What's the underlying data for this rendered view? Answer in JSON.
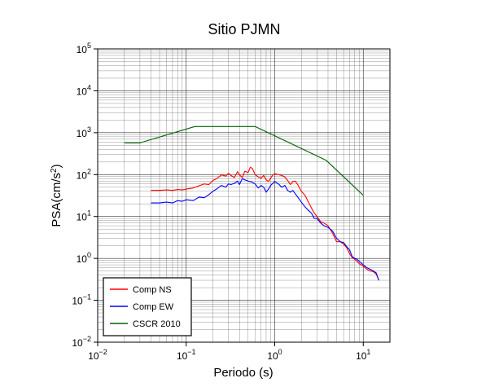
{
  "chart_data": {
    "type": "line",
    "title": "Sitio PJMN",
    "xlabel": "Periodo (s)",
    "ylabel_main": "PSA(cm/s",
    "ylabel_sup": "2",
    "ylabel_end": ")",
    "xscale": "log",
    "yscale": "log",
    "xlim": [
      0.01,
      20
    ],
    "ylim": [
      0.01,
      100000
    ],
    "grid": true,
    "legend_position": "bottom-left",
    "x_ticks": [
      {
        "base": "10",
        "exp": "−2",
        "value": 0.01
      },
      {
        "base": "10",
        "exp": "−1",
        "value": 0.1
      },
      {
        "base": "10",
        "exp": "0",
        "value": 1
      },
      {
        "base": "10",
        "exp": "1",
        "value": 10
      }
    ],
    "y_ticks": [
      {
        "base": "10",
        "exp": "−2",
        "value": 0.01
      },
      {
        "base": "10",
        "exp": "−1",
        "value": 0.1
      },
      {
        "base": "10",
        "exp": "0",
        "value": 1
      },
      {
        "base": "10",
        "exp": "1",
        "value": 10
      },
      {
        "base": "10",
        "exp": "2",
        "value": 100
      },
      {
        "base": "10",
        "exp": "3",
        "value": 1000
      },
      {
        "base": "10",
        "exp": "4",
        "value": 10000
      },
      {
        "base": "10",
        "exp": "5",
        "value": 100000
      }
    ],
    "series": [
      {
        "name": "Comp NS",
        "color": "#ff0000",
        "x": [
          0.04,
          0.05,
          0.06,
          0.07,
          0.08,
          0.09,
          0.1,
          0.12,
          0.14,
          0.16,
          0.18,
          0.2,
          0.22,
          0.25,
          0.28,
          0.3,
          0.32,
          0.35,
          0.38,
          0.4,
          0.43,
          0.46,
          0.5,
          0.53,
          0.56,
          0.6,
          0.65,
          0.7,
          0.75,
          0.8,
          0.85,
          0.9,
          0.95,
          1.0,
          1.1,
          1.2,
          1.3,
          1.4,
          1.5,
          1.6,
          1.7,
          1.8,
          2.0,
          2.2,
          2.4,
          2.6,
          2.8,
          3.0,
          3.3,
          3.6,
          4.0,
          4.5,
          5.0,
          5.5,
          6.0,
          6.5,
          7.0,
          7.5,
          8.0,
          8.5,
          9.0,
          10.0,
          11.0,
          12.0,
          13.0,
          14.0,
          15.0
        ],
        "y": [
          42,
          42,
          43,
          42,
          44,
          43,
          45,
          48,
          54,
          60,
          58,
          72,
          80,
          98,
          92,
          108,
          95,
          85,
          118,
          98,
          85,
          120,
          112,
          150,
          140,
          100,
          88,
          82,
          95,
          75,
          68,
          82,
          98,
          105,
          100,
          95,
          88,
          72,
          58,
          68,
          70,
          60,
          40,
          32,
          22,
          16,
          12,
          10,
          7.5,
          7,
          6,
          4,
          2.5,
          2.5,
          2.2,
          1.8,
          1.3,
          1.05,
          0.95,
          0.85,
          0.75,
          0.65,
          0.55,
          0.5,
          0.48,
          0.42,
          0.3
        ]
      },
      {
        "name": "Comp EW",
        "color": "#0000ff",
        "x": [
          0.04,
          0.05,
          0.06,
          0.07,
          0.08,
          0.09,
          0.1,
          0.12,
          0.14,
          0.16,
          0.18,
          0.2,
          0.22,
          0.25,
          0.28,
          0.3,
          0.32,
          0.35,
          0.38,
          0.4,
          0.43,
          0.46,
          0.5,
          0.53,
          0.56,
          0.6,
          0.65,
          0.7,
          0.75,
          0.8,
          0.85,
          0.9,
          0.95,
          1.0,
          1.1,
          1.2,
          1.3,
          1.4,
          1.5,
          1.6,
          1.7,
          1.8,
          2.0,
          2.2,
          2.4,
          2.6,
          2.8,
          3.0,
          3.3,
          3.6,
          4.0,
          4.5,
          5.0,
          5.5,
          6.0,
          6.5,
          7.0,
          7.5,
          8.0,
          8.5,
          9.0,
          10.0,
          11.0,
          12.0,
          13.0,
          14.0,
          15.0
        ],
        "y": [
          21,
          21,
          22,
          21,
          24,
          23,
          25,
          24,
          29,
          28,
          33,
          40,
          45,
          55,
          50,
          60,
          58,
          62,
          70,
          58,
          80,
          75,
          70,
          68,
          65,
          60,
          48,
          55,
          50,
          38,
          45,
          55,
          62,
          68,
          60,
          50,
          55,
          42,
          38,
          42,
          35,
          30,
          22,
          17,
          14,
          12,
          9,
          9,
          7,
          6,
          5.5,
          4.5,
          3,
          2.5,
          2.4,
          1.9,
          1.6,
          1.1,
          1.0,
          0.95,
          0.85,
          0.7,
          0.6,
          0.55,
          0.5,
          0.45,
          0.3
        ]
      },
      {
        "name": "CSCR 2010",
        "color": "#006400",
        "x": [
          0.02,
          0.03,
          0.125,
          0.6,
          3.8,
          10
        ],
        "y": [
          570,
          570,
          1400,
          1400,
          220,
          32
        ]
      }
    ]
  }
}
